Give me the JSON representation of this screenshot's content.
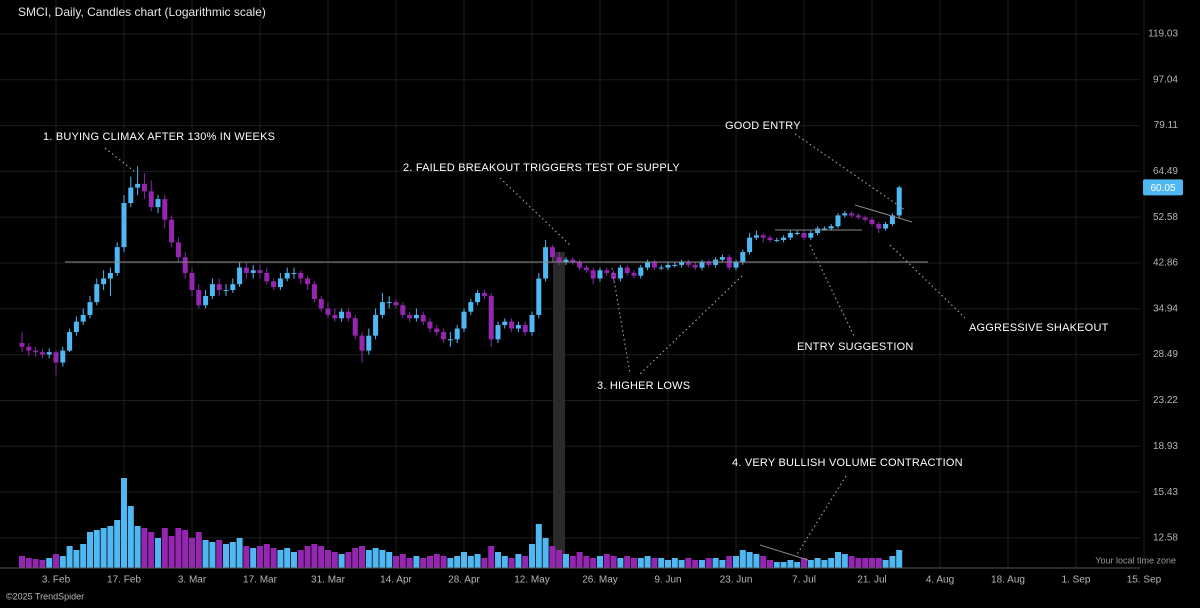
{
  "chart_data": {
    "type": "candlestick",
    "title": "SMCI, Daily, Candles chart (Logarithmic scale)",
    "timezone_note": "Your local time zone",
    "copyright": "©2025 TrendSpider",
    "annotations": [
      "1. BUYING CLIMAX AFTER 130% IN WEEKS",
      "2. FAILED BREAKOUT TRIGGERS TEST OF SUPPLY",
      "3. HIGHER LOWS",
      "4. VERY BULLISH VOLUME CONTRACTION",
      "GOOD ENTRY",
      "ENTRY SUGGESTION",
      "AGGRESSIVE SHAKEOUT"
    ],
    "log_scale": true,
    "grid": true,
    "up_color": "#4fb8f2",
    "down_color": "#9426b0",
    "ylim": [
      11.0,
      138.5
    ],
    "yticks": [
      12.58,
      15.43,
      18.93,
      23.22,
      28.49,
      34.94,
      42.86,
      52.58,
      64.49,
      79.11,
      97.04,
      119.03
    ],
    "volume_lim": [
      0,
      100
    ],
    "categories": [
      null,
      null,
      null,
      null,
      null,
      "3. Feb",
      null,
      null,
      null,
      null,
      null,
      null,
      null,
      null,
      null,
      "17. Feb",
      null,
      null,
      null,
      null,
      null,
      null,
      null,
      null,
      null,
      "3. Mar",
      null,
      null,
      null,
      null,
      null,
      null,
      null,
      null,
      null,
      "17. Mar",
      null,
      null,
      null,
      null,
      null,
      null,
      null,
      null,
      null,
      "31. Mar",
      null,
      null,
      null,
      null,
      null,
      null,
      null,
      null,
      null,
      "14. Apr",
      null,
      null,
      null,
      null,
      null,
      null,
      null,
      null,
      null,
      "28. Apr",
      null,
      null,
      null,
      null,
      null,
      null,
      null,
      null,
      null,
      "12. May",
      null,
      null,
      null,
      null,
      null,
      null,
      null,
      null,
      null,
      "26. May",
      null,
      null,
      null,
      null,
      null,
      null,
      null,
      null,
      null,
      "9. Jun",
      null,
      null,
      null,
      null,
      null,
      null,
      null,
      null,
      null,
      "23. Jun",
      null,
      null,
      null,
      null,
      null,
      null,
      null,
      null,
      null,
      "7. Jul",
      null,
      null,
      null,
      null,
      null,
      null,
      null,
      null,
      null,
      "21. Jul",
      null,
      null,
      null,
      null,
      null,
      null,
      null,
      null,
      null,
      "4. Aug",
      null,
      null,
      null,
      null,
      null,
      null,
      null,
      null,
      null,
      "18. Aug",
      null,
      null,
      null,
      null,
      null,
      null,
      null,
      null,
      null,
      "1. Sep",
      null,
      null,
      null,
      null,
      null,
      null,
      null,
      null,
      null,
      "15. Sep"
    ],
    "open": [
      30.0,
      29.5,
      29.0,
      28.8,
      28.5,
      28.8,
      27.5,
      29.0,
      31.5,
      33.0,
      34.0,
      36.0,
      39.0,
      40.0,
      41.0,
      46.0,
      56.0,
      60.0,
      61.0,
      59.0,
      55.0,
      57.0,
      52.0,
      47.0,
      44.0,
      41.0,
      38.0,
      35.5,
      37.0,
      39.0,
      38.0,
      38.0,
      39.0,
      42.0,
      41.0,
      41.5,
      41.0,
      39.5,
      38.5,
      40.0,
      41.0,
      41.0,
      40.0,
      39.0,
      36.5,
      35.0,
      34.0,
      33.5,
      34.5,
      33.5,
      31.0,
      29.0,
      31.0,
      34.0,
      36.0,
      36.0,
      35.5,
      34.0,
      33.5,
      34.0,
      33.0,
      32.0,
      31.5,
      30.5,
      30.5,
      32.0,
      34.5,
      36.0,
      37.5,
      37.0,
      30.5,
      32.5,
      33.0,
      32.0,
      32.5,
      31.5,
      34.0,
      40.0,
      46.0,
      44.0,
      43.0,
      43.5,
      43.0,
      42.0,
      41.5,
      40.0,
      41.5,
      41.0,
      40.0,
      42.0,
      41.0,
      40.5,
      42.0,
      43.0,
      42.0,
      42.0,
      42.5,
      42.5,
      43.0,
      42.5,
      42.0,
      43.0,
      42.5,
      43.5,
      44.0,
      42.0,
      43.0,
      45.0,
      48.0,
      48.5,
      48.0,
      47.5,
      47.5,
      48.0,
      49.0,
      49.0,
      48.0,
      49.0,
      50.0,
      50.0,
      50.5,
      53.0,
      53.5,
      53.0,
      52.5,
      52.0,
      51.0,
      50.0,
      51.0,
      53.0,
      null,
      null,
      null,
      null,
      null,
      null,
      null,
      null,
      null,
      null,
      null,
      null,
      null,
      null,
      null,
      null,
      null,
      null,
      null,
      null,
      null,
      null,
      null,
      null,
      null,
      null,
      null,
      null,
      null,
      null,
      null,
      null,
      null,
      null,
      null,
      null
    ],
    "high": [
      31.5,
      30.0,
      29.5,
      29.2,
      29.3,
      29.0,
      29.5,
      32.0,
      33.8,
      35.0,
      37.0,
      40.0,
      41.5,
      42.0,
      47.0,
      58.0,
      63.0,
      66.0,
      64.0,
      62.0,
      58.0,
      58.0,
      53.0,
      48.0,
      45.0,
      42.0,
      39.0,
      38.0,
      40.0,
      40.0,
      39.0,
      40.0,
      43.0,
      43.0,
      42.5,
      42.5,
      42.0,
      40.0,
      41.0,
      42.0,
      42.0,
      41.5,
      40.5,
      39.5,
      37.0,
      36.0,
      35.0,
      35.0,
      35.0,
      34.0,
      31.5,
      32.0,
      35.0,
      37.5,
      37.0,
      36.5,
      36.0,
      34.5,
      35.0,
      34.5,
      33.5,
      32.5,
      32.0,
      31.5,
      32.5,
      35.0,
      36.5,
      38.0,
      38.0,
      37.5,
      33.0,
      33.5,
      33.5,
      33.0,
      33.0,
      34.5,
      41.0,
      47.5,
      46.5,
      45.0,
      44.0,
      44.0,
      43.5,
      42.5,
      42.0,
      42.0,
      42.0,
      41.5,
      42.5,
      42.5,
      41.5,
      42.5,
      43.5,
      43.5,
      42.5,
      43.0,
      43.0,
      43.5,
      43.5,
      43.0,
      43.5,
      43.5,
      44.0,
      44.5,
      44.5,
      43.5,
      45.5,
      49.0,
      49.5,
      49.0,
      48.5,
      48.0,
      48.5,
      49.5,
      49.5,
      49.5,
      49.5,
      50.5,
      50.5,
      51.0,
      53.5,
      54.0,
      54.0,
      53.5,
      53.0,
      52.5,
      51.5,
      51.5,
      53.5,
      60.5,
      null,
      null,
      null,
      null,
      null,
      null,
      null,
      null,
      null,
      null,
      null,
      null,
      null,
      null,
      null,
      null,
      null,
      null,
      null,
      null,
      null,
      null,
      null,
      null,
      null,
      null,
      null,
      null,
      null,
      null,
      null,
      null,
      null,
      null,
      null,
      null
    ],
    "low": [
      28.8,
      28.3,
      28.2,
      28.0,
      28.0,
      26.0,
      27.0,
      28.8,
      31.0,
      32.5,
      33.5,
      35.5,
      38.0,
      37.0,
      40.5,
      45.0,
      55.0,
      58.0,
      57.0,
      54.0,
      53.5,
      50.0,
      46.0,
      43.0,
      40.0,
      37.0,
      35.0,
      35.0,
      36.5,
      37.0,
      37.0,
      37.5,
      38.5,
      40.0,
      40.0,
      40.0,
      39.0,
      38.0,
      38.0,
      39.5,
      40.0,
      39.0,
      38.0,
      36.0,
      34.5,
      33.5,
      33.0,
      33.0,
      33.0,
      30.5,
      27.5,
      28.5,
      30.5,
      33.5,
      35.0,
      35.0,
      33.5,
      33.0,
      33.0,
      32.5,
      31.5,
      31.0,
      30.0,
      29.5,
      30.0,
      31.5,
      34.0,
      35.5,
      36.5,
      29.5,
      30.0,
      32.0,
      31.5,
      31.5,
      31.0,
      31.0,
      33.5,
      39.5,
      43.0,
      42.5,
      42.5,
      42.5,
      41.5,
      41.0,
      39.0,
      39.5,
      40.5,
      39.5,
      39.5,
      40.5,
      40.0,
      40.0,
      41.5,
      41.5,
      41.5,
      41.5,
      42.0,
      42.0,
      42.0,
      41.5,
      41.5,
      42.0,
      42.0,
      43.0,
      41.5,
      41.5,
      42.5,
      44.5,
      47.5,
      47.0,
      47.0,
      47.0,
      47.0,
      47.5,
      48.5,
      47.5,
      47.5,
      48.5,
      49.5,
      49.5,
      50.0,
      52.5,
      52.5,
      52.0,
      51.5,
      50.5,
      49.0,
      49.5,
      50.5,
      52.5,
      null,
      null,
      null,
      null,
      null,
      null,
      null,
      null,
      null,
      null,
      null,
      null,
      null,
      null,
      null,
      null,
      null,
      null,
      null,
      null,
      null,
      null,
      null,
      null,
      null,
      null,
      null,
      null,
      null,
      null,
      null,
      null,
      null,
      null,
      null,
      null
    ],
    "close": [
      29.5,
      29.0,
      28.8,
      28.5,
      28.8,
      27.5,
      29.0,
      31.5,
      33.0,
      34.0,
      36.0,
      39.0,
      40.0,
      41.0,
      46.0,
      56.0,
      60.0,
      61.0,
      59.0,
      55.0,
      57.0,
      52.0,
      47.0,
      44.0,
      41.0,
      38.0,
      35.5,
      37.0,
      39.0,
      38.0,
      38.0,
      39.0,
      42.0,
      41.0,
      41.5,
      41.0,
      39.5,
      38.5,
      40.0,
      41.0,
      41.0,
      40.0,
      39.0,
      36.5,
      35.0,
      34.0,
      33.5,
      34.5,
      33.5,
      31.0,
      29.0,
      31.0,
      34.0,
      36.0,
      36.0,
      35.5,
      34.0,
      33.5,
      34.0,
      33.0,
      32.0,
      31.5,
      30.5,
      30.5,
      32.0,
      34.5,
      36.0,
      37.5,
      37.0,
      30.5,
      32.5,
      33.0,
      32.0,
      32.5,
      31.5,
      34.0,
      40.0,
      46.0,
      44.0,
      43.0,
      43.5,
      43.0,
      42.0,
      41.5,
      40.0,
      41.5,
      41.0,
      40.0,
      42.0,
      41.0,
      40.5,
      42.0,
      43.0,
      42.0,
      42.0,
      42.5,
      42.5,
      43.0,
      42.5,
      42.0,
      43.0,
      42.5,
      43.5,
      44.0,
      42.0,
      43.0,
      45.0,
      48.0,
      48.5,
      48.0,
      47.5,
      47.5,
      48.0,
      49.0,
      49.0,
      48.0,
      49.0,
      50.0,
      50.0,
      50.5,
      53.0,
      53.5,
      53.0,
      52.5,
      52.0,
      51.0,
      50.0,
      51.0,
      53.0,
      60.05,
      null,
      null,
      null,
      null,
      null,
      null,
      null,
      null,
      null,
      null,
      null,
      null,
      null,
      null,
      null,
      null,
      null,
      null,
      null,
      null,
      null,
      null,
      null,
      null,
      null,
      null,
      null,
      null,
      null,
      null,
      null,
      null,
      null,
      null,
      null,
      null
    ],
    "volume": [
      12,
      10,
      9,
      8,
      10,
      14,
      12,
      22,
      18,
      24,
      36,
      38,
      40,
      42,
      48,
      90,
      62,
      42,
      40,
      36,
      30,
      40,
      32,
      40,
      38,
      30,
      36,
      28,
      26,
      28,
      24,
      26,
      30,
      22,
      20,
      22,
      24,
      20,
      18,
      20,
      16,
      18,
      22,
      24,
      22,
      18,
      16,
      14,
      16,
      20,
      22,
      18,
      20,
      18,
      16,
      12,
      14,
      10,
      12,
      10,
      12,
      14,
      12,
      10,
      12,
      16,
      12,
      14,
      10,
      22,
      16,
      12,
      10,
      14,
      12,
      24,
      44,
      30,
      22,
      18,
      14,
      12,
      16,
      12,
      10,
      12,
      14,
      12,
      10,
      12,
      10,
      10,
      12,
      10,
      10,
      8,
      10,
      8,
      10,
      8,
      8,
      10,
      10,
      8,
      12,
      12,
      18,
      16,
      14,
      12,
      8,
      6,
      6,
      8,
      6,
      10,
      8,
      10,
      8,
      10,
      16,
      14,
      12,
      10,
      10,
      10,
      10,
      8,
      12,
      18,
      null,
      null,
      null,
      null,
      null,
      null,
      null,
      null,
      null,
      null,
      null,
      null,
      null,
      null,
      null,
      null,
      null,
      null,
      null,
      null,
      null,
      null,
      null,
      null,
      null,
      null,
      null,
      null,
      null,
      null,
      null,
      null,
      null,
      null,
      null,
      null
    ]
  }
}
